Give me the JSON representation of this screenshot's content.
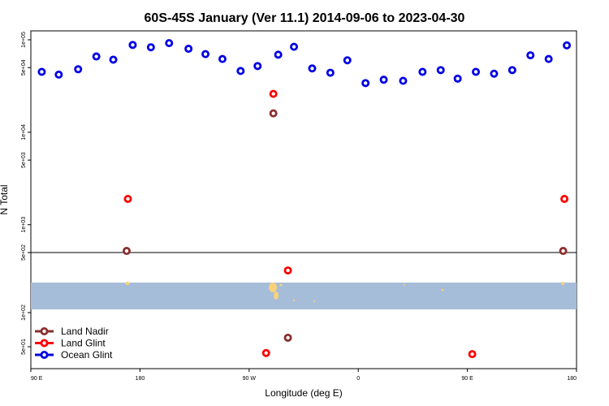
{
  "chart_data": {
    "type": "scatter",
    "title": "60S-45S January (Ver 11.1)   2014-09-06 to 2023-04-30",
    "xlabel": "Longitude (deg E)",
    "ylabel": "N Total",
    "x_axis": {
      "ticks": [
        {
          "value": 90,
          "label": "90 E"
        },
        {
          "value": 180,
          "label": "180"
        },
        {
          "value": 270,
          "label": "90 W"
        },
        {
          "value": 360,
          "label": "0"
        },
        {
          "value": 450,
          "label": "90 E"
        },
        {
          "value": 540,
          "label": "180"
        }
      ],
      "xlim": [
        90,
        540
      ]
    },
    "y_axis": {
      "scale": "log",
      "upper_panel": {
        "ylim": [
          500,
          100000
        ],
        "ticks": [
          {
            "value": 500,
            "label": "5e+02"
          },
          {
            "value": 1000,
            "label": "1e+03"
          },
          {
            "value": 5000,
            "label": "5e+03"
          },
          {
            "value": 10000,
            "label": "1e+04"
          },
          {
            "value": 50000,
            "label": "5e+04"
          },
          {
            "value": 100000,
            "label": "1e+05"
          }
        ]
      },
      "lower_panel": {
        "ticks": [
          {
            "value": 50,
            "label": "5e+01"
          },
          {
            "value": 100,
            "label": "1e+02"
          }
        ]
      }
    },
    "legend": {
      "position": "bottom-left",
      "entries": [
        {
          "name": "Land Nadir",
          "color": "#8b2e2e"
        },
        {
          "name": "Land Glint",
          "color": "#ff0000"
        },
        {
          "name": "Ocean Glint",
          "color": "#0000e6"
        }
      ]
    },
    "series": [
      {
        "name": "Ocean Glint",
        "color": "#0000e6",
        "points": [
          [
            99,
            45000
          ],
          [
            113,
            42000
          ],
          [
            129,
            48000
          ],
          [
            144,
            66000
          ],
          [
            158,
            61000
          ],
          [
            174,
            88000
          ],
          [
            189,
            83000
          ],
          [
            204,
            92000
          ],
          [
            220,
            80000
          ],
          [
            234,
            70000
          ],
          [
            248,
            62000
          ],
          [
            263,
            46000
          ],
          [
            277,
            52000
          ],
          [
            294,
            69000
          ],
          [
            307,
            84000
          ],
          [
            322,
            49000
          ],
          [
            337,
            44000
          ],
          [
            351,
            60000
          ],
          [
            366,
            34000
          ],
          [
            381,
            37000
          ],
          [
            397,
            36000
          ],
          [
            413,
            45000
          ],
          [
            428,
            47000
          ],
          [
            442,
            38000
          ],
          [
            457,
            45000
          ],
          [
            472,
            43000
          ],
          [
            487,
            47000
          ],
          [
            502,
            68000
          ],
          [
            517,
            62000
          ],
          [
            532,
            87000
          ]
        ]
      },
      {
        "name": "Land Glint",
        "color": "#ff0000",
        "points": [
          [
            170,
            1900
          ],
          [
            290,
            26000
          ],
          [
            302,
            320
          ],
          [
            284,
            44
          ],
          [
            454,
            43
          ],
          [
            530,
            1900
          ]
        ]
      },
      {
        "name": "Land Nadir",
        "color": "#8b2e2e",
        "points": [
          [
            169,
            520
          ],
          [
            290,
            16000
          ],
          [
            302,
            60
          ],
          [
            529,
            520
          ]
        ]
      }
    ]
  }
}
